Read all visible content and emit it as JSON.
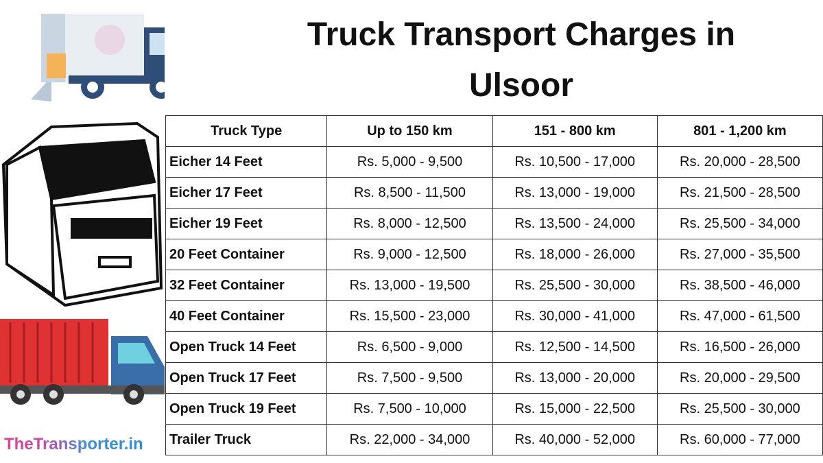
{
  "title": "Truck Transport Charges in Ulsoor",
  "brand": "TheTransporter.in",
  "table": {
    "header": [
      "Truck Type",
      "Up to 150 km",
      "151 - 800 km",
      "801 - 1,200 km"
    ],
    "rows": [
      [
        "Eicher 14 Feet",
        "Rs. 5,000 - 9,500",
        "Rs. 10,500 - 17,000",
        "Rs. 20,000 - 28,500"
      ],
      [
        "Eicher 17 Feet",
        "Rs. 8,500 - 11,500",
        "Rs. 13,000 - 19,000",
        "Rs. 21,500 - 28,500"
      ],
      [
        "Eicher 19 Feet",
        "Rs. 8,000 - 12,500",
        "Rs. 13,500 - 24,000",
        "Rs. 25,500 - 34,000"
      ],
      [
        "20 Feet Container",
        "Rs. 9,000 - 12,500",
        "Rs. 18,000 - 26,000",
        "Rs. 27,000 - 35,500"
      ],
      [
        "32 Feet Container",
        "Rs. 13,000 - 19,500",
        "Rs. 25,500 - 30,000",
        "Rs. 38,500 - 46,000"
      ],
      [
        "40 Feet Container",
        "Rs. 15,500 - 23,000",
        "Rs. 30,000 - 41,000",
        "Rs. 47,000 - 61,500"
      ],
      [
        "Open Truck 14 Feet",
        "Rs. 6,500 - 9,000",
        "Rs. 12,500 - 14,500",
        "Rs. 16,500 - 26,000"
      ],
      [
        "Open Truck 17 Feet",
        "Rs. 7,500 - 9,500",
        "Rs. 13,000 - 20,000",
        "Rs. 20,000 - 29,500"
      ],
      [
        "Open Truck 19 Feet",
        "Rs. 7,500 - 10,000",
        "Rs. 15,000 - 22,500",
        "Rs. 25,500 - 30,000"
      ],
      [
        "Trailer Truck",
        "Rs. 22,000 - 34,000",
        "Rs. 40,000 - 52,000",
        "Rs. 60,000 - 77,000"
      ]
    ]
  }
}
